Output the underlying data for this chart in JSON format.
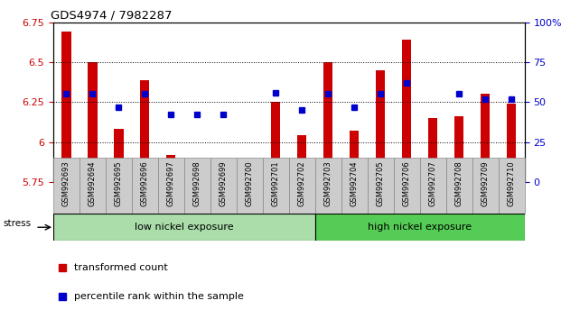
{
  "title": "GDS4974 / 7982287",
  "samples": [
    "GSM992693",
    "GSM992694",
    "GSM992695",
    "GSM992696",
    "GSM992697",
    "GSM992698",
    "GSM992699",
    "GSM992700",
    "GSM992701",
    "GSM992702",
    "GSM992703",
    "GSM992704",
    "GSM992705",
    "GSM992706",
    "GSM992707",
    "GSM992708",
    "GSM992709",
    "GSM992710"
  ],
  "red_values": [
    6.69,
    6.5,
    6.08,
    6.39,
    5.92,
    5.86,
    5.84,
    5.83,
    6.25,
    6.04,
    6.5,
    6.07,
    6.45,
    6.64,
    6.15,
    6.16,
    6.3,
    6.24
  ],
  "blue_values": [
    55,
    55,
    47,
    55,
    42,
    42,
    42,
    null,
    56,
    45,
    55,
    47,
    55,
    62,
    null,
    55,
    52,
    52
  ],
  "ylim_left": [
    5.75,
    6.75
  ],
  "ylim_right": [
    0,
    100
  ],
  "yticks_left": [
    5.75,
    6.0,
    6.25,
    6.5,
    6.75
  ],
  "ytick_labels_left": [
    "5.75",
    "6",
    "6.25",
    "6.5",
    "6.75"
  ],
  "yticks_right": [
    0,
    25,
    50,
    75,
    100
  ],
  "ytick_labels_right": [
    "0",
    "25",
    "50",
    "75",
    "100%"
  ],
  "grid_values": [
    6.0,
    6.25,
    6.5
  ],
  "low_nickel_count": 10,
  "high_nickel_count": 8,
  "low_nickel_label": "low nickel exposure",
  "high_nickel_label": "high nickel exposure",
  "stress_label": "stress",
  "legend_red": "transformed count",
  "legend_blue": "percentile rank within the sample",
  "red_color": "#cc0000",
  "blue_color": "#0000cc",
  "low_nickel_color": "#aaddaa",
  "high_nickel_color": "#55cc55",
  "plot_bg": "#ffffff",
  "bar_width": 0.35
}
